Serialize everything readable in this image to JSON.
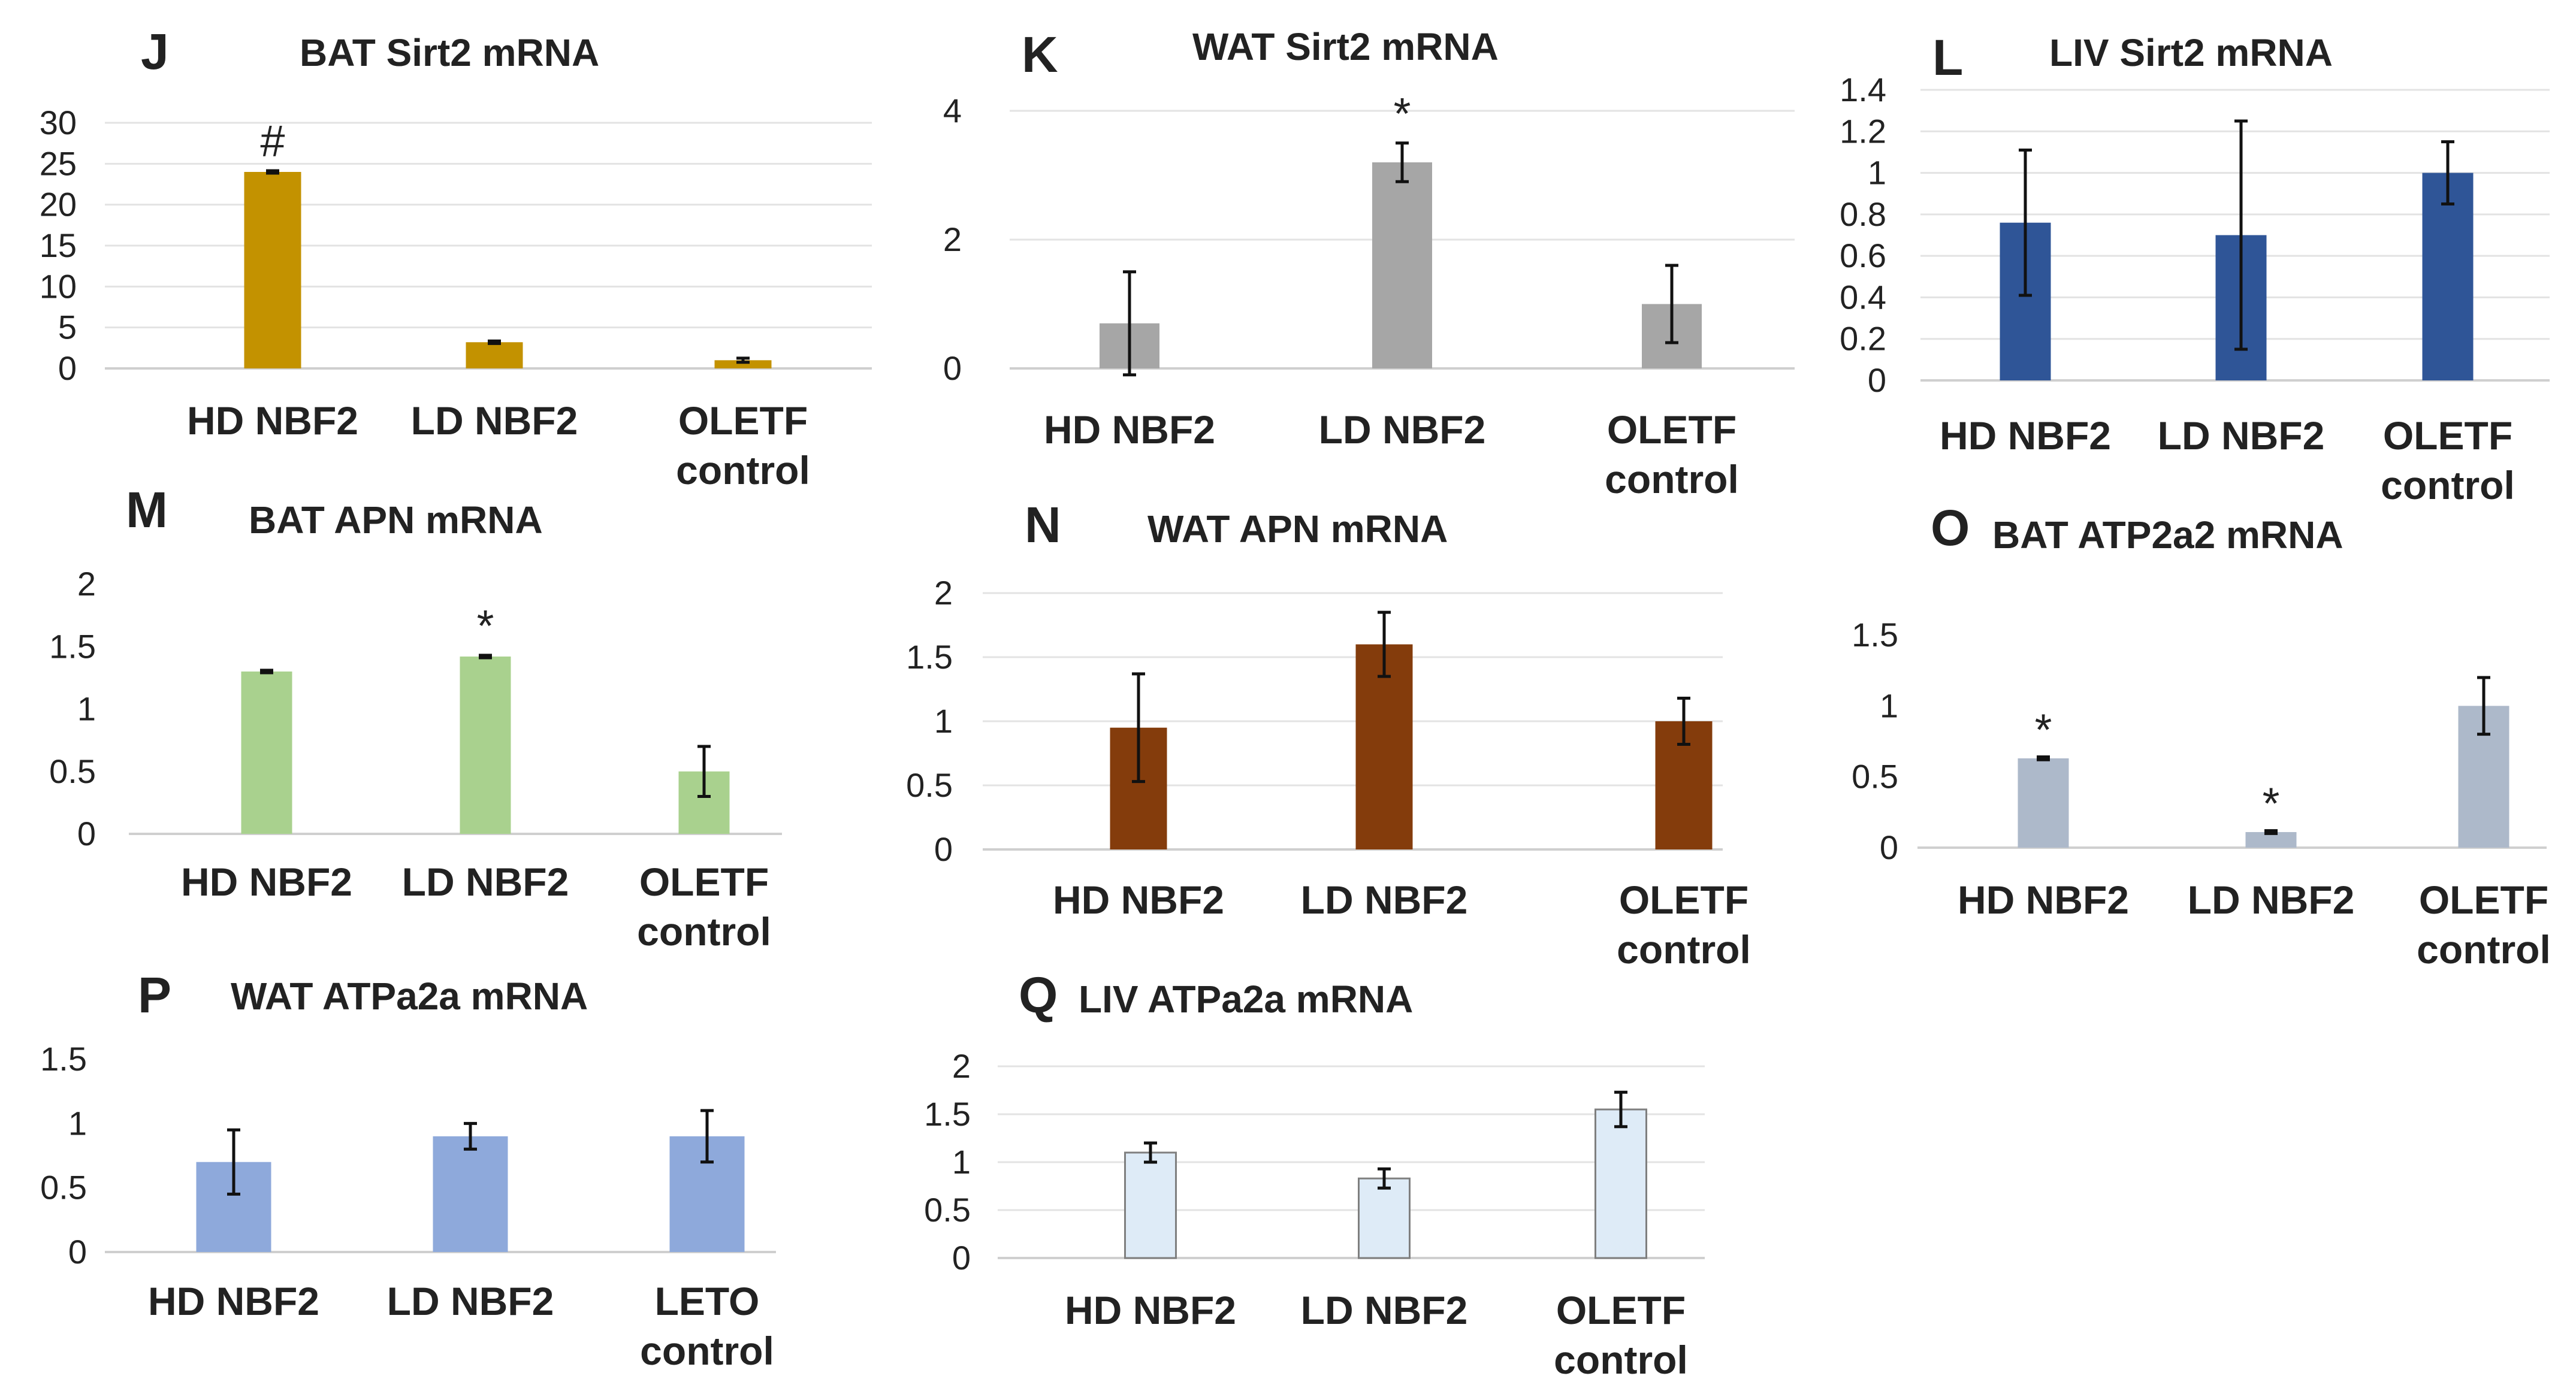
{
  "chart_data": [
    {
      "id": "J",
      "type": "bar",
      "letter": "J",
      "title": "BAT Sirt2 mRNA",
      "ylabel": "",
      "xlabel": "",
      "ylim": [
        0,
        30
      ],
      "yticks": [
        "30",
        "25",
        "20",
        "15",
        "10",
        "5",
        "0"
      ],
      "categories": [
        [
          "HD NBF2"
        ],
        [
          "LD NBF2"
        ],
        [
          "OLETF",
          "control"
        ]
      ],
      "values": [
        24,
        3.2,
        1
      ],
      "errors": [
        0.15,
        0.15,
        0.25
      ],
      "annotations": [
        "#",
        "",
        ""
      ],
      "color": "#C39200",
      "border": "",
      "grid": true
    },
    {
      "id": "K",
      "type": "bar",
      "letter": "K",
      "title": "WAT Sirt2 mRNA",
      "ylabel": "",
      "xlabel": "",
      "ylim": [
        0,
        4
      ],
      "yticks": [
        "4",
        "2",
        "0"
      ],
      "categories": [
        [
          "HD NBF2"
        ],
        [
          "LD NBF2"
        ],
        [
          "OLETF",
          "control"
        ]
      ],
      "values": [
        0.7,
        3.2,
        1
      ],
      "errors": [
        0.8,
        0.3,
        0.6
      ],
      "annotations": [
        "",
        "*",
        ""
      ],
      "color": "#A6A6A6",
      "border": "",
      "grid": true
    },
    {
      "id": "L",
      "type": "bar",
      "letter": "L",
      "title": "LIV Sirt2 mRNA",
      "ylabel": "",
      "xlabel": "",
      "ylim": [
        0,
        1.4
      ],
      "yticks": [
        "1.4",
        "1.2",
        "1",
        "0.8",
        "0.6",
        "0.4",
        "0.2",
        "0"
      ],
      "categories": [
        [
          "HD NBF2"
        ],
        [
          "LD NBF2"
        ],
        [
          "OLETF",
          "control"
        ]
      ],
      "values": [
        0.76,
        0.7,
        1
      ],
      "errors": [
        0.35,
        0.55,
        0.15
      ],
      "annotations": [
        "",
        "",
        ""
      ],
      "color": "#2F5597",
      "border": "",
      "grid": true
    },
    {
      "id": "M",
      "type": "bar",
      "letter": "M",
      "title": "BAT APN mRNA",
      "ylabel": "",
      "xlabel": "",
      "ylim": [
        0,
        2
      ],
      "yticks": [
        "2",
        "1.5",
        "1",
        "0.5",
        "0"
      ],
      "categories": [
        [
          "HD NBF2"
        ],
        [
          "LD NBF2"
        ],
        [
          "OLETF",
          "control"
        ]
      ],
      "values": [
        1.3,
        1.42,
        0.5
      ],
      "errors": [
        0.01,
        0.01,
        0.2
      ],
      "annotations": [
        "",
        "*",
        ""
      ],
      "color": "#A9D18E",
      "border": "",
      "grid": false
    },
    {
      "id": "N",
      "type": "bar",
      "letter": "N",
      "title": "WAT APN mRNA",
      "ylabel": "",
      "xlabel": "",
      "ylim": [
        0,
        2
      ],
      "yticks": [
        "2",
        "1.5",
        "1",
        "0.5",
        "0"
      ],
      "categories": [
        [
          "HD NBF2"
        ],
        [
          "LD NBF2"
        ],
        [
          "OLETF",
          "control"
        ]
      ],
      "values": [
        0.95,
        1.6,
        1
      ],
      "errors": [
        0.42,
        0.25,
        0.18
      ],
      "annotations": [
        "",
        "",
        ""
      ],
      "color": "#843C0C",
      "border": "",
      "grid": true
    },
    {
      "id": "O",
      "type": "bar",
      "letter": "O",
      "title": "BAT ATP2a2 mRNA",
      "ylabel": "",
      "xlabel": "",
      "ylim": [
        0,
        1.5
      ],
      "yticks": [
        "1.5",
        "1",
        "0.5",
        "0"
      ],
      "categories": [
        [
          "HD NBF2"
        ],
        [
          "LD NBF2"
        ],
        [
          "OLETF",
          "control"
        ]
      ],
      "values": [
        0.63,
        0.11,
        1
      ],
      "errors": [
        0.01,
        0.01,
        0.2
      ],
      "annotations": [
        "*",
        "*",
        ""
      ],
      "color": "#ADB9CA",
      "border": "",
      "grid": false
    },
    {
      "id": "P",
      "type": "bar",
      "letter": "P",
      "title": "WAT ATPa2a mRNA",
      "ylabel": "",
      "xlabel": "",
      "ylim": [
        0,
        1.5
      ],
      "yticks": [
        "1.5",
        "1",
        "0.5",
        "0"
      ],
      "categories": [
        [
          "HD NBF2"
        ],
        [
          "LD NBF2"
        ],
        [
          "LETO",
          "control"
        ]
      ],
      "values": [
        0.7,
        0.9,
        0.9
      ],
      "errors": [
        0.25,
        0.1,
        0.2
      ],
      "annotations": [
        "",
        "",
        ""
      ],
      "color": "#8EA9DB",
      "border": "",
      "grid": false
    },
    {
      "id": "Q",
      "type": "bar",
      "letter": "Q",
      "title": "LIV ATPa2a mRNA",
      "ylabel": "",
      "xlabel": "",
      "ylim": [
        0,
        2
      ],
      "yticks": [
        "2",
        "1.5",
        "1",
        "0.5",
        "0"
      ],
      "categories": [
        [
          "HD NBF2"
        ],
        [
          "LD NBF2"
        ],
        [
          "OLETF",
          "control"
        ]
      ],
      "values": [
        1.1,
        0.83,
        1.55
      ],
      "errors": [
        0.1,
        0.1,
        0.18
      ],
      "annotations": [
        "",
        "",
        ""
      ],
      "color": "#DEEBF7",
      "border": "#7F7F7F",
      "grid": true
    }
  ]
}
